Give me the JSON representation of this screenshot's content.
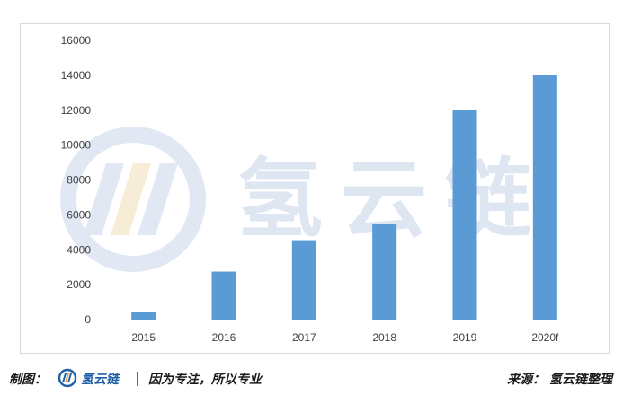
{
  "chart_data": {
    "type": "bar",
    "categories": [
      "2015",
      "2016",
      "2017",
      "2018",
      "2019",
      "2020f"
    ],
    "values": [
      450,
      2750,
      4550,
      5500,
      12000,
      14000
    ],
    "ylim": [
      0,
      16000
    ],
    "yticks": [
      0,
      2000,
      4000,
      6000,
      8000,
      10000,
      12000,
      14000,
      16000
    ],
    "bar_color": "#5b9bd5",
    "grid": false,
    "title": "",
    "xlabel": "",
    "ylabel": ""
  },
  "watermark": {
    "text": "氢云链",
    "color": "#c9d6ea"
  },
  "footer": {
    "left_label": "制图：",
    "brand": "氢云链",
    "slogan": "因为专注，所以专业",
    "source": "来源： 氢云链整理",
    "brand_color": "#1f5fa8",
    "logo_icon": "hydrogen-cloud-chain-logo-icon"
  }
}
